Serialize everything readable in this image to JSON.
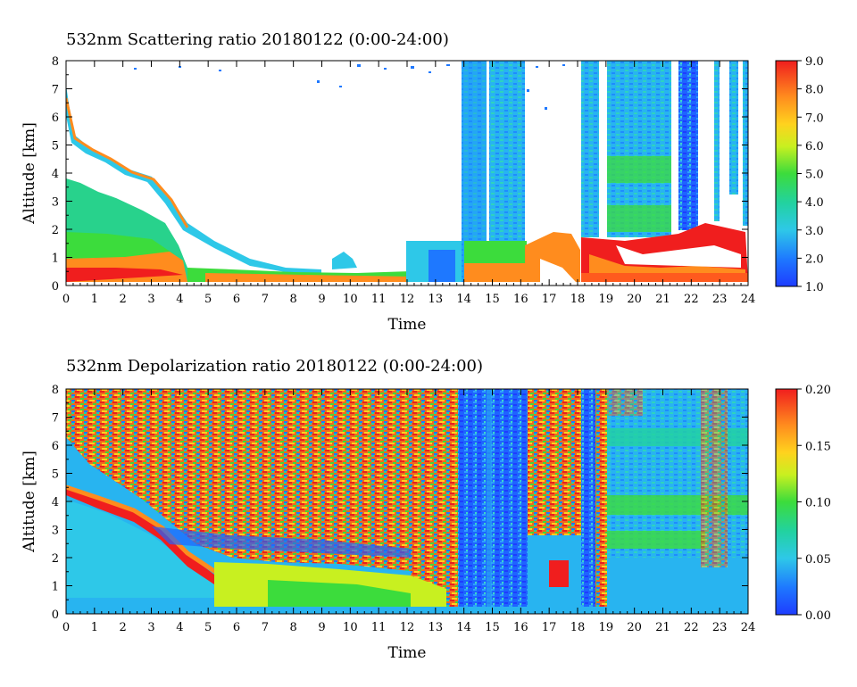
{
  "chart_data": [
    {
      "type": "heatmap",
      "title": "532nm Scattering ratio  20180122 (0:00-24:00)",
      "xlabel": "Time",
      "ylabel": "Altitude [km]",
      "xlim": [
        0,
        24
      ],
      "ylim": [
        0,
        8
      ],
      "x_ticks": [
        "0",
        "1",
        "2",
        "3",
        "4",
        "5",
        "6",
        "7",
        "8",
        "9",
        "10",
        "11",
        "12",
        "13",
        "14",
        "15",
        "16",
        "17",
        "18",
        "19",
        "20",
        "21",
        "22",
        "23",
        "24"
      ],
      "y_ticks": [
        "0",
        "1",
        "2",
        "3",
        "4",
        "5",
        "6",
        "7",
        "8"
      ],
      "colorbar": {
        "range": [
          1.0,
          9.0
        ],
        "ticks": [
          "1.0",
          "2.0",
          "3.0",
          "4.0",
          "5.0",
          "6.0",
          "7.0",
          "8.0",
          "9.0"
        ]
      }
    },
    {
      "type": "heatmap",
      "title": "532nm Depolarization ratio  20180122 (0:00-24:00)",
      "xlabel": "Time",
      "ylabel": "Altitude [km]",
      "xlim": [
        0,
        24
      ],
      "ylim": [
        0,
        8
      ],
      "x_ticks": [
        "0",
        "1",
        "2",
        "3",
        "4",
        "5",
        "6",
        "7",
        "8",
        "9",
        "10",
        "11",
        "12",
        "13",
        "14",
        "15",
        "16",
        "17",
        "18",
        "19",
        "20",
        "21",
        "22",
        "23",
        "24"
      ],
      "y_ticks": [
        "0",
        "1",
        "2",
        "3",
        "4",
        "5",
        "6",
        "7",
        "8"
      ],
      "colorbar": {
        "range": [
          0.0,
          0.2
        ],
        "ticks": [
          "0.00",
          "0.05",
          "0.10",
          "0.15",
          "0.20"
        ]
      }
    }
  ]
}
